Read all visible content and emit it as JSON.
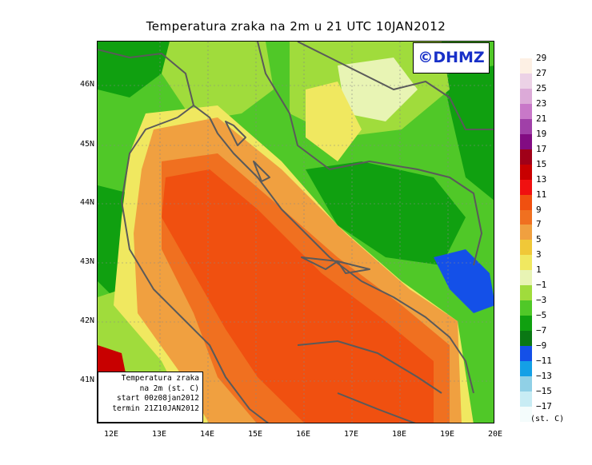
{
  "title": "Temperatura zraka na 2m u 21 UTC 10JAN2012",
  "logo": "©DHMZ",
  "info": {
    "line1": "Temperatura zraka",
    "line2": "na 2m (st. C)",
    "line3": "start 00z08jan2012",
    "line4": "termin 21Z10JAN2012"
  },
  "legend": {
    "unit": "(st. C)",
    "items": [
      {
        "label": "29",
        "color": "#fdf0e4"
      },
      {
        "label": "27",
        "color": "#ecd2e6"
      },
      {
        "label": "25",
        "color": "#dcaad8"
      },
      {
        "label": "23",
        "color": "#c878c8"
      },
      {
        "label": "21",
        "color": "#a040a8"
      },
      {
        "label": "19",
        "color": "#820c82"
      },
      {
        "label": "17",
        "color": "#a00018"
      },
      {
        "label": "15",
        "color": "#c80000"
      },
      {
        "label": "13",
        "color": "#f01010"
      },
      {
        "label": "11",
        "color": "#f05010"
      },
      {
        "label": "9",
        "color": "#f07020"
      },
      {
        "label": "7",
        "color": "#f0a040"
      },
      {
        "label": "5",
        "color": "#f0c838"
      },
      {
        "label": "3",
        "color": "#f0e860"
      },
      {
        "label": "1",
        "color": "#e8f4b4"
      },
      {
        "label": "−1",
        "color": "#a0dc3c"
      },
      {
        "label": "−3",
        "color": "#50c828"
      },
      {
        "label": "−5",
        "color": "#10a010"
      },
      {
        "label": "−7",
        "color": "#0a7814"
      },
      {
        "label": "−9",
        "color": "#1450e8"
      },
      {
        "label": "−11",
        "color": "#14a0e6"
      },
      {
        "label": "−13",
        "color": "#90d0e6"
      },
      {
        "label": "−15",
        "color": "#c8ecf4"
      },
      {
        "label": "−17",
        "color": "#f4fcfc"
      }
    ]
  },
  "axes": {
    "lat_labels": [
      "46N",
      "45N",
      "44N",
      "43N",
      "42N",
      "41N"
    ],
    "lon_labels": [
      "12E",
      "13E",
      "14E",
      "15E",
      "16E",
      "17E",
      "18E",
      "19E",
      "20E"
    ]
  },
  "map_data": {
    "region": "Adriatic / Croatia",
    "variable": "2m air temperature",
    "extent": {
      "lon": [
        11.8,
        20.0
      ],
      "lat": [
        40.3,
        46.8
      ]
    }
  }
}
